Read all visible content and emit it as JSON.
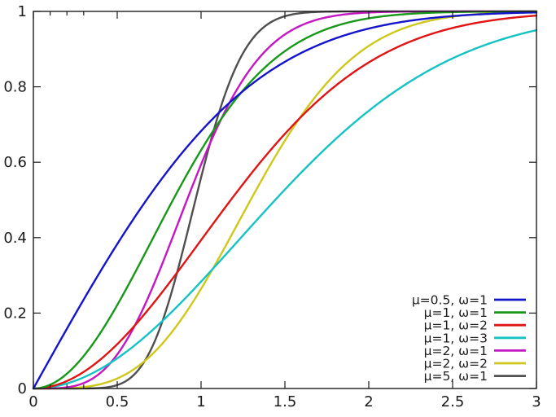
{
  "colors": {
    "background": "#ffffff",
    "axis": "#1c1c1c",
    "text": "#1c1c1c"
  },
  "chart_data": {
    "type": "line",
    "title": "",
    "xlabel": "",
    "ylabel": "",
    "xlim": [
      0,
      3
    ],
    "ylim": [
      0,
      1
    ],
    "grid": false,
    "legend_position": "bottom-right",
    "x_tick_labels": [
      "0",
      "0.5",
      "1",
      "1.5",
      "2",
      "2.5",
      "3"
    ],
    "x_major_ticks": [
      0,
      0.5,
      1,
      1.5,
      2,
      2.5,
      3
    ],
    "x_minor_step": 0.1,
    "y_tick_labels": [
      "0",
      "0.2",
      "0.4",
      "0.6",
      "0.8",
      "1"
    ],
    "y_major_ticks": [
      0,
      0.2,
      0.4,
      0.6,
      0.8,
      1
    ],
    "x_samples": [
      0,
      0.25,
      0.5,
      0.75,
      1,
      1.25,
      1.5,
      1.75,
      2,
      2.25,
      2.5,
      2.75,
      3
    ],
    "series": [
      {
        "label": "μ=0.5, ω=1",
        "mu": 0.5,
        "omega": 1,
        "color": "#1414cc",
        "cdf_samples": [
          0,
          0.1974,
          0.3829,
          0.5467,
          0.6827,
          0.7887,
          0.8664,
          0.9197,
          0.9545,
          0.9755,
          0.9876,
          0.994,
          0.9973
        ]
      },
      {
        "label": "μ=1, ω=1",
        "mu": 1,
        "omega": 1,
        "color": "#189818",
        "cdf_samples": [
          0,
          0.0606,
          0.2212,
          0.4302,
          0.6321,
          0.7904,
          0.8946,
          0.9533,
          0.9817,
          0.9937,
          0.9981,
          0.9995,
          0.9999
        ]
      },
      {
        "label": "μ=1, ω=2",
        "mu": 1,
        "omega": 2,
        "color": "#e11414",
        "cdf_samples": [
          0,
          0.0308,
          0.1175,
          0.2452,
          0.3935,
          0.5422,
          0.6753,
          0.7838,
          0.8647,
          0.9204,
          0.9561,
          0.9772,
          0.9889
        ]
      },
      {
        "label": "μ=1, ω=3",
        "mu": 1,
        "omega": 3,
        "color": "#14c3c3",
        "cdf_samples": [
          0,
          0.0206,
          0.08,
          0.171,
          0.2835,
          0.406,
          0.5276,
          0.6397,
          0.7364,
          0.815,
          0.8755,
          0.9196,
          0.9502
        ]
      },
      {
        "label": "μ=2, ω=1",
        "mu": 2,
        "omega": 1,
        "color": "#c317c3",
        "cdf_samples": [
          0,
          0.0072,
          0.0902,
          0.3101,
          0.594,
          0.8188,
          0.9389,
          0.9844,
          0.997,
          0.9996,
          0.9999,
          1.0,
          1.0
        ]
      },
      {
        "label": "μ=2, ω=2",
        "mu": 2,
        "omega": 2,
        "color": "#cfc81a",
        "cdf_samples": [
          0,
          0.0019,
          0.0265,
          0.1097,
          0.2642,
          0.4629,
          0.6575,
          0.81,
          0.9084,
          0.9616,
          0.986,
          0.9956,
          0.9988
        ]
      },
      {
        "label": "μ=5, ω=1",
        "mu": 5,
        "omega": 1,
        "color": "#4f4f4f",
        "cdf_samples": [
          0,
          0.0001,
          0.0091,
          0.1543,
          0.5595,
          0.8891,
          0.9872,
          0.9993,
          1.0,
          1.0,
          1.0,
          1.0,
          1.0
        ]
      }
    ]
  }
}
